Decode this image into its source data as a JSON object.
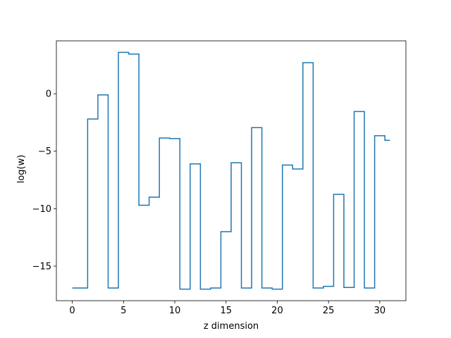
{
  "chart_data": {
    "type": "line",
    "drawstyle": "steps-mid",
    "title": "",
    "xlabel": "z dimension",
    "ylabel": "log(w)",
    "xlim": [
      -1.55,
      32.55
    ],
    "ylim": [
      -18.0,
      4.6
    ],
    "xticks": [
      0,
      5,
      10,
      15,
      20,
      25,
      30
    ],
    "yticks": [
      -15,
      -10,
      -5,
      0
    ],
    "ytick_labels": [
      "−15",
      "−10",
      "−5",
      "0"
    ],
    "grid": false,
    "series": [
      {
        "color": "#1f77b4",
        "x": [
          0,
          1,
          2,
          3,
          4,
          5,
          6,
          7,
          8,
          9,
          10,
          11,
          12,
          13,
          14,
          15,
          16,
          17,
          18,
          19,
          20,
          21,
          22,
          23,
          24,
          25,
          26,
          27,
          28,
          29,
          30,
          31
        ],
        "y": [
          -16.9,
          -16.9,
          -2.2,
          -0.1,
          -16.9,
          3.6,
          3.45,
          -9.7,
          -9.0,
          -3.85,
          -3.9,
          -17.0,
          -6.1,
          -17.0,
          -16.9,
          -12.0,
          -6.0,
          -16.9,
          -2.95,
          -16.9,
          -17.0,
          -6.2,
          -6.55,
          2.7,
          -16.9,
          -16.75,
          -8.75,
          -16.85,
          -1.55,
          -16.9,
          -3.65,
          -4.05
        ]
      }
    ]
  }
}
